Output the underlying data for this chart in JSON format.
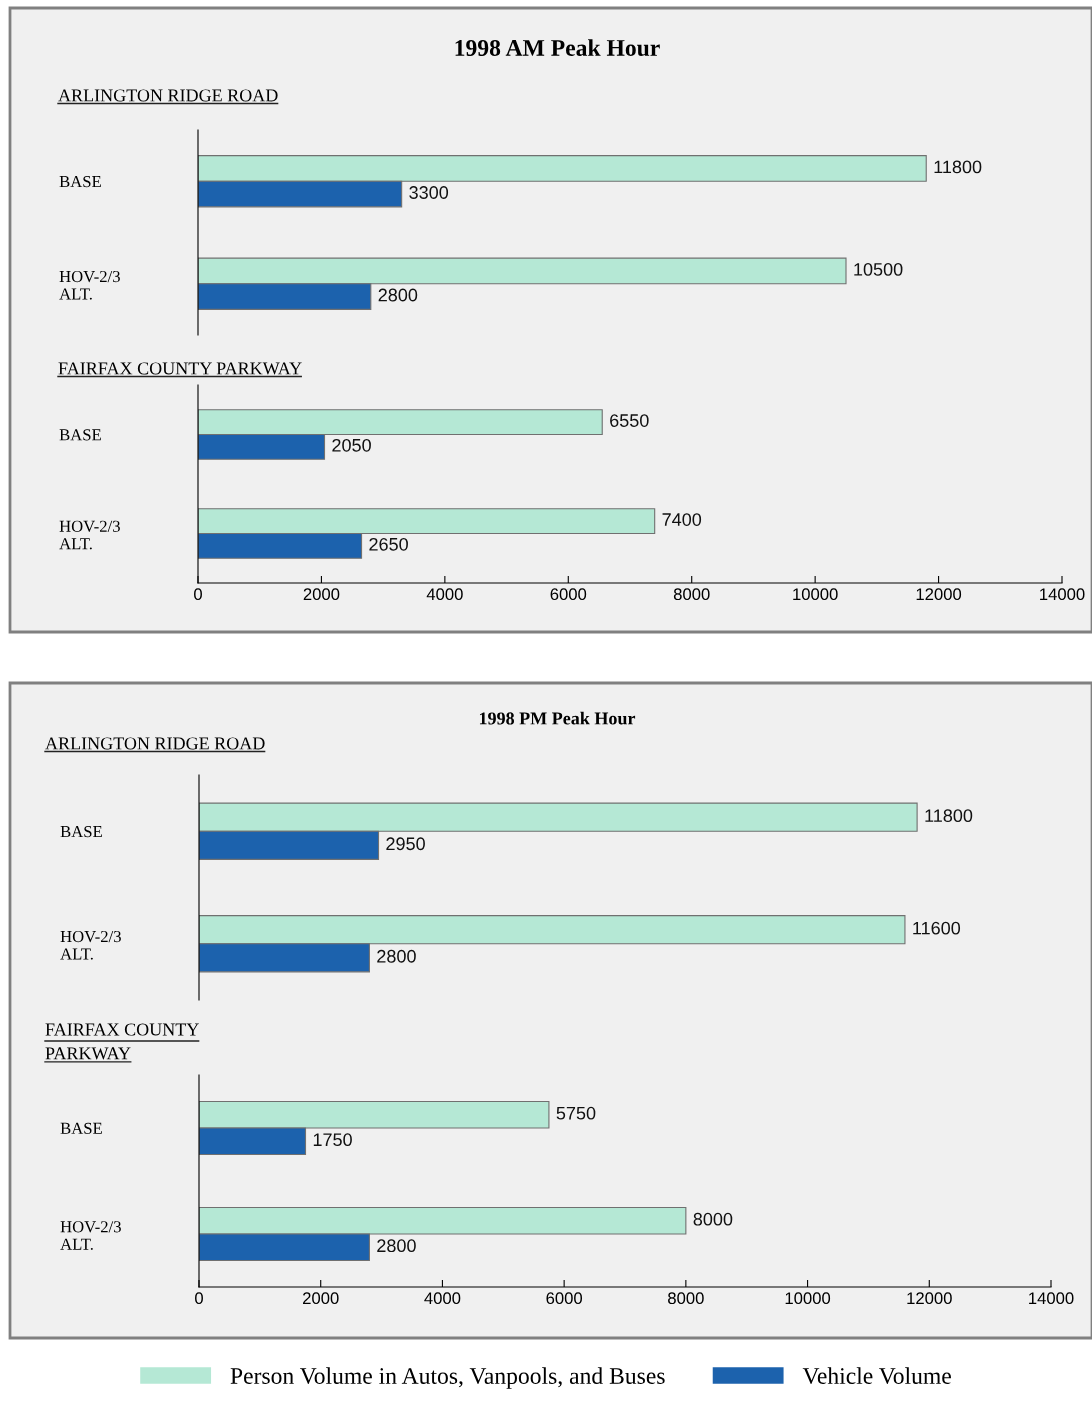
{
  "chart_data": [
    {
      "type": "bar",
      "orientation": "horizontal",
      "title": "1998 AM Peak Hour",
      "subtitle": "ARLINGTON RIDGE ROAD",
      "categories": [
        "BASE",
        "HOV-2/3\nALT."
      ],
      "series": [
        {
          "color": "#b5e8d5",
          "values": [
            11800,
            10500
          ]
        },
        {
          "color": "#1c62ad",
          "values": [
            3300,
            2800
          ]
        }
      ],
      "xlim": [
        0,
        14000
      ],
      "xticks": [
        0,
        2000,
        4000,
        6000,
        8000,
        10000,
        12000,
        14000
      ],
      "tick_labels": "y",
      "data_labels": true,
      "grid": false
    },
    {
      "type": "bar",
      "orientation": "horizontal",
      "subtitle": "FAIRFAX COUNTY PARKWAY",
      "categories": [
        "BASE",
        "HOV-2/3\nALT."
      ],
      "series": [
        {
          "color": "#b5e8d5",
          "values": [
            6550,
            7400
          ]
        },
        {
          "color": "#1c62ad",
          "values": [
            2050,
            2650
          ]
        }
      ],
      "xlim": [
        0,
        14000
      ],
      "xticks": [
        0,
        2000,
        4000,
        6000,
        8000,
        10000,
        12000,
        14000
      ],
      "data_labels": true,
      "grid": false
    },
    {
      "type": "bar",
      "orientation": "horizontal",
      "title": "1998 PM Peak Hour",
      "subtitle": "ARLINGTON RIDGE ROAD",
      "categories": [
        "BASE",
        "HOV-2/3\nALT."
      ],
      "series": [
        {
          "color": "#b5e8d5",
          "values": [
            11800,
            11600
          ]
        },
        {
          "color": "#1c62ad",
          "values": [
            2950,
            2800
          ]
        }
      ],
      "xlim": [
        0,
        14000
      ],
      "xticks": [
        0,
        2000,
        4000,
        6000,
        8000,
        10000,
        12000,
        14000
      ],
      "tick_labels": "y",
      "data_labels": true,
      "grid": false
    },
    {
      "type": "bar",
      "orientation": "horizontal",
      "subtitle": "FAIRFAX COUNTY\nPARKWAY",
      "categories": [
        "BASE",
        "HOV-2/3\nALT."
      ],
      "series": [
        {
          "name": "Person Volume in Autos, Vanpools, and Buses",
          "color": "#b5e8d5",
          "values": [
            5750,
            8000
          ]
        },
        {
          "name": "Vehicle Volume",
          "color": "#1c62ad",
          "values": [
            1750,
            2800
          ]
        }
      ],
      "xlim": [
        0,
        14000
      ],
      "xticks": [
        0,
        2000,
        4000,
        6000,
        8000,
        10000,
        12000,
        14000
      ],
      "data_labels": true,
      "grid": false,
      "legend": "bottom"
    }
  ]
}
